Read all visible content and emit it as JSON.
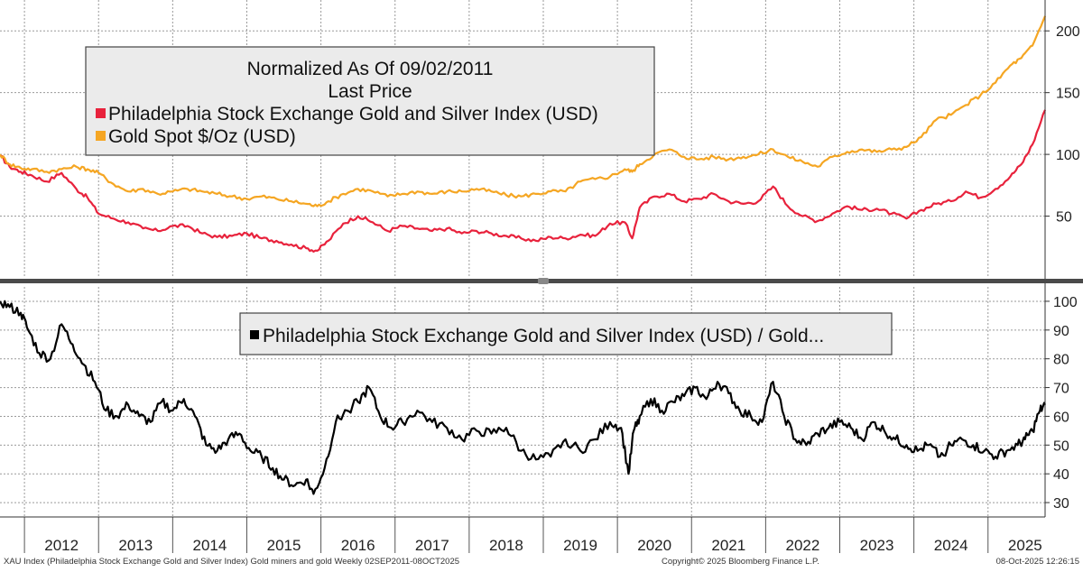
{
  "chart_data": [
    {
      "type": "line",
      "panel": "top",
      "title": "Normalized As Of 09/02/2011",
      "subtitle": "Last Price",
      "ylim": [
        0,
        225
      ],
      "yticks": [
        50,
        100,
        150,
        200
      ],
      "xlim": [
        2011.67,
        2025.77
      ],
      "grid": true,
      "legend_position": "top-left",
      "series": [
        {
          "name": "Philadelphia Stock Exchange Gold and Silver Index (USD)",
          "color": "#e8223c",
          "x": [
            2011.67,
            2011.8,
            2011.95,
            2012.1,
            2012.3,
            2012.5,
            2012.7,
            2012.85,
            2013.0,
            2013.2,
            2013.4,
            2013.6,
            2013.8,
            2014.0,
            2014.2,
            2014.4,
            2014.6,
            2014.8,
            2015.0,
            2015.2,
            2015.4,
            2015.6,
            2015.8,
            2015.95,
            2016.1,
            2016.3,
            2016.5,
            2016.7,
            2016.9,
            2017.1,
            2017.3,
            2017.5,
            2017.7,
            2017.9,
            2018.1,
            2018.3,
            2018.5,
            2018.7,
            2018.9,
            2019.1,
            2019.3,
            2019.5,
            2019.7,
            2019.9,
            2020.1,
            2020.2,
            2020.3,
            2020.5,
            2020.7,
            2020.9,
            2021.1,
            2021.3,
            2021.5,
            2021.7,
            2021.9,
            2022.1,
            2022.3,
            2022.5,
            2022.7,
            2022.9,
            2023.1,
            2023.3,
            2023.5,
            2023.7,
            2023.9,
            2024.1,
            2024.3,
            2024.5,
            2024.7,
            2024.9,
            2025.1,
            2025.3,
            2025.45,
            2025.6,
            2025.77
          ],
          "values": [
            99,
            90,
            86,
            83,
            78,
            85,
            72,
            65,
            52,
            48,
            45,
            40,
            38,
            42,
            42,
            36,
            33,
            34,
            36,
            32,
            30,
            27,
            24,
            22,
            30,
            44,
            50,
            45,
            38,
            42,
            40,
            38,
            40,
            36,
            38,
            36,
            34,
            32,
            30,
            33,
            32,
            35,
            34,
            44,
            45,
            32,
            57,
            66,
            68,
            62,
            64,
            68,
            62,
            60,
            62,
            74,
            58,
            50,
            46,
            52,
            58,
            55,
            56,
            52,
            48,
            55,
            60,
            62,
            70,
            65,
            72,
            82,
            92,
            108,
            136
          ]
        },
        {
          "name": "Gold Spot $/Oz (USD)",
          "color": "#f5a623",
          "x": [
            2011.67,
            2011.8,
            2011.95,
            2012.1,
            2012.3,
            2012.5,
            2012.7,
            2012.85,
            2013.0,
            2013.2,
            2013.4,
            2013.6,
            2013.8,
            2014.0,
            2014.2,
            2014.4,
            2014.6,
            2014.8,
            2015.0,
            2015.2,
            2015.4,
            2015.6,
            2015.8,
            2015.95,
            2016.1,
            2016.3,
            2016.5,
            2016.7,
            2016.9,
            2017.1,
            2017.3,
            2017.5,
            2017.7,
            2017.9,
            2018.1,
            2018.3,
            2018.5,
            2018.7,
            2018.9,
            2019.1,
            2019.3,
            2019.5,
            2019.7,
            2019.9,
            2020.1,
            2020.2,
            2020.3,
            2020.5,
            2020.7,
            2020.9,
            2021.1,
            2021.3,
            2021.5,
            2021.7,
            2021.9,
            2022.1,
            2022.3,
            2022.5,
            2022.7,
            2022.9,
            2023.1,
            2023.3,
            2023.5,
            2023.7,
            2023.9,
            2024.1,
            2024.3,
            2024.5,
            2024.7,
            2024.9,
            2025.1,
            2025.3,
            2025.45,
            2025.6,
            2025.77
          ],
          "values": [
            100,
            92,
            89,
            88,
            86,
            88,
            90,
            88,
            85,
            76,
            70,
            72,
            68,
            70,
            72,
            70,
            68,
            66,
            64,
            66,
            64,
            62,
            60,
            58,
            62,
            68,
            72,
            70,
            66,
            68,
            70,
            68,
            70,
            70,
            72,
            70,
            67,
            66,
            68,
            70,
            70,
            78,
            80,
            82,
            88,
            86,
            92,
            100,
            104,
            98,
            96,
            98,
            96,
            98,
            100,
            104,
            98,
            94,
            90,
            98,
            102,
            104,
            102,
            104,
            106,
            114,
            128,
            132,
            140,
            148,
            158,
            172,
            178,
            188,
            212
          ]
        }
      ]
    },
    {
      "type": "line",
      "panel": "bottom",
      "title": "",
      "ylim": [
        25,
        105
      ],
      "yticks": [
        30,
        40,
        50,
        60,
        70,
        80,
        90,
        100
      ],
      "xlim": [
        2011.67,
        2025.77
      ],
      "grid": true,
      "legend_position": "top-center",
      "series": [
        {
          "name": "Philadelphia Stock Exchange Gold and Silver Index (USD) / Gold...",
          "color": "#000000",
          "x": [
            2011.67,
            2011.8,
            2011.95,
            2012.05,
            2012.2,
            2012.35,
            2012.5,
            2012.65,
            2012.8,
            2012.95,
            2013.1,
            2013.25,
            2013.4,
            2013.55,
            2013.7,
            2013.85,
            2014.0,
            2014.15,
            2014.3,
            2014.45,
            2014.6,
            2014.75,
            2014.9,
            2015.05,
            2015.2,
            2015.35,
            2015.5,
            2015.65,
            2015.8,
            2015.9,
            2016.05,
            2016.2,
            2016.35,
            2016.5,
            2016.65,
            2016.8,
            2016.95,
            2017.1,
            2017.3,
            2017.5,
            2017.7,
            2017.9,
            2018.1,
            2018.3,
            2018.5,
            2018.7,
            2018.9,
            2019.1,
            2019.3,
            2019.5,
            2019.7,
            2019.9,
            2020.05,
            2020.15,
            2020.22,
            2020.3,
            2020.45,
            2020.6,
            2020.75,
            2020.9,
            2021.05,
            2021.2,
            2021.35,
            2021.5,
            2021.65,
            2021.8,
            2021.95,
            2022.1,
            2022.25,
            2022.4,
            2022.55,
            2022.7,
            2022.85,
            2023.0,
            2023.15,
            2023.3,
            2023.45,
            2023.6,
            2023.75,
            2023.9,
            2024.05,
            2024.2,
            2024.35,
            2024.5,
            2024.65,
            2024.8,
            2024.95,
            2025.1,
            2025.25,
            2025.4,
            2025.5,
            2025.6,
            2025.7,
            2025.77
          ],
          "values": [
            100,
            98,
            96,
            90,
            82,
            80,
            92,
            85,
            78,
            72,
            62,
            60,
            64,
            60,
            58,
            65,
            62,
            66,
            60,
            50,
            48,
            52,
            54,
            48,
            46,
            42,
            38,
            36,
            38,
            33,
            42,
            58,
            62,
            65,
            70,
            60,
            56,
            58,
            62,
            58,
            56,
            52,
            55,
            54,
            56,
            48,
            45,
            46,
            52,
            48,
            52,
            58,
            56,
            40,
            55,
            60,
            66,
            62,
            65,
            67,
            70,
            66,
            72,
            68,
            62,
            60,
            58,
            72,
            60,
            52,
            50,
            54,
            56,
            58,
            56,
            52,
            58,
            55,
            52,
            50,
            48,
            50,
            46,
            50,
            52,
            50,
            48,
            46,
            48,
            50,
            52,
            55,
            62,
            64
          ]
        }
      ]
    },
    {
      "type": "axis",
      "xticks": [
        "2012",
        "2013",
        "2014",
        "2015",
        "2016",
        "2017",
        "2018",
        "2019",
        "2020",
        "2021",
        "2022",
        "2023",
        "2024",
        "2025"
      ]
    }
  ],
  "footer": {
    "left": "XAU Index (Philadelphia Stock Exchange Gold and Silver Index) Gold miners and gold Weekly 02SEP2011-08OCT2025",
    "center": "Copyright© 2025 Bloomberg Finance L.P.",
    "right": "08-Oct-2025 12:26:15"
  }
}
